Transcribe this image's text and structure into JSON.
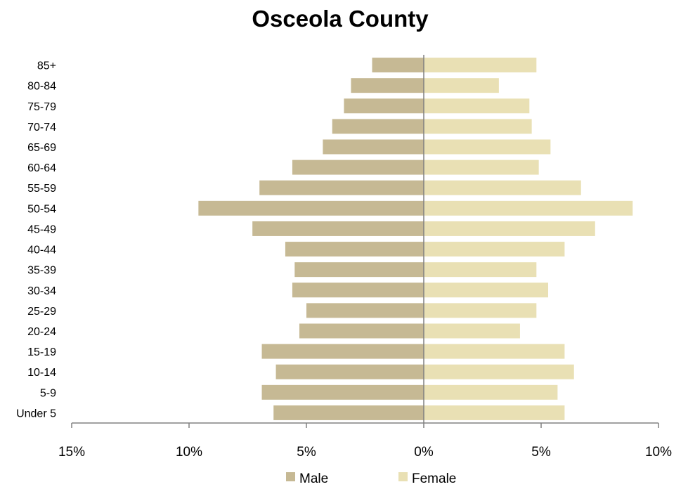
{
  "chart_data": {
    "type": "bar",
    "orientation": "horizontal",
    "layout": "population-pyramid",
    "title": "Osceola County",
    "categories": [
      "85+",
      "80-84",
      "75-79",
      "70-74",
      "65-69",
      "60-64",
      "55-59",
      "50-54",
      "45-49",
      "40-44",
      "35-39",
      "30-34",
      "25-29",
      "20-24",
      "15-19",
      "10-14",
      "5-9",
      "Under 5"
    ],
    "series": [
      {
        "name": "Male",
        "color": "#c6b994",
        "side": "left",
        "values": [
          2.2,
          3.1,
          3.4,
          3.9,
          4.3,
          5.6,
          7.0,
          9.6,
          7.3,
          5.9,
          5.5,
          5.6,
          5.0,
          5.3,
          6.9,
          6.3,
          6.9,
          6.4
        ]
      },
      {
        "name": "Female",
        "color": "#e9e0b4",
        "side": "right",
        "values": [
          4.8,
          3.2,
          4.5,
          4.6,
          5.4,
          4.9,
          6.7,
          8.9,
          7.3,
          6.0,
          4.8,
          5.3,
          4.8,
          4.1,
          6.0,
          6.4,
          5.7,
          6.0
        ]
      }
    ],
    "xlim": [
      -15,
      10
    ],
    "x_ticks": [
      -15,
      -10,
      -5,
      0,
      5,
      10
    ],
    "x_tick_labels": [
      "15%",
      "10%",
      "5%",
      "0%",
      "5%",
      "10%"
    ],
    "xlabel": "",
    "ylabel": "",
    "grid": false,
    "legend_position": "bottom"
  }
}
